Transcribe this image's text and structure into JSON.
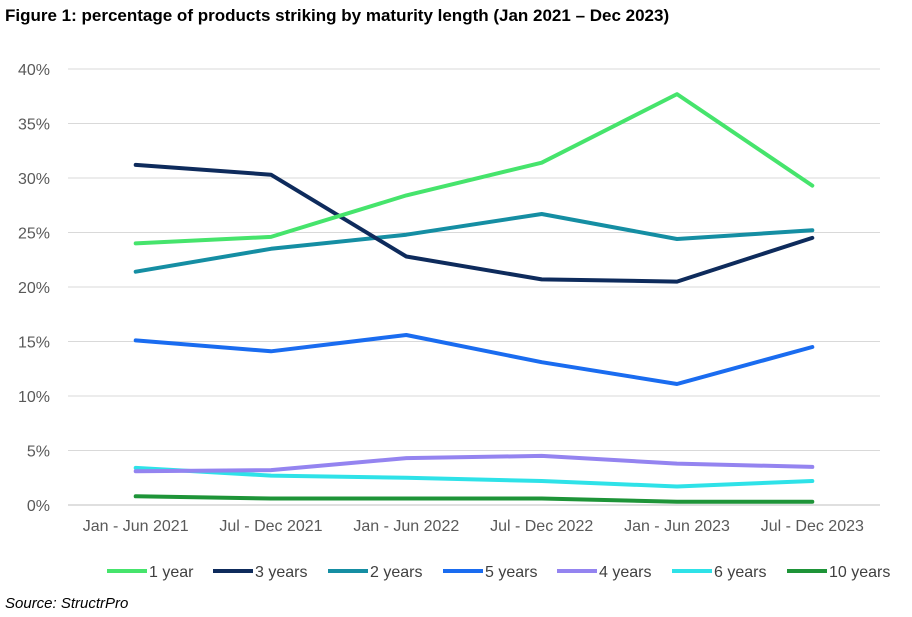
{
  "figure": {
    "title": "Figure 1: percentage of products striking by maturity length (Jan 2021 – Dec 2023)",
    "source": "Source: StructrPro"
  },
  "chart_data": {
    "type": "line",
    "title": "Figure 1: percentage of products striking by maturity length (Jan 2021 – Dec 2023)",
    "xlabel": "",
    "ylabel": "",
    "categories": [
      "Jan - Jun 2021",
      "Jul - Dec 2021",
      "Jan - Jun 2022",
      "Jul - Dec 2022",
      "Jan - Jun 2023",
      "Jul - Dec 2023"
    ],
    "ylim": [
      0,
      40
    ],
    "yticks": [
      0,
      5,
      10,
      15,
      20,
      25,
      30,
      35,
      40
    ],
    "ytick_labels": [
      "0%",
      "5%",
      "10%",
      "15%",
      "20%",
      "25%",
      "30%",
      "35%",
      "40%"
    ],
    "grid": true,
    "legend_position": "bottom",
    "series": [
      {
        "name": "1 year",
        "color": "#46e46c",
        "values": [
          24.0,
          24.6,
          28.4,
          31.4,
          37.7,
          29.3
        ]
      },
      {
        "name": "3 years",
        "color": "#0e2b5c",
        "values": [
          31.2,
          30.3,
          22.8,
          20.7,
          20.5,
          24.5
        ]
      },
      {
        "name": "2 years",
        "color": "#158ea3",
        "values": [
          21.4,
          23.5,
          24.8,
          26.7,
          24.4,
          25.2
        ]
      },
      {
        "name": "5 years",
        "color": "#1a6cf0",
        "values": [
          15.1,
          14.1,
          15.6,
          13.1,
          11.1,
          14.5
        ]
      },
      {
        "name": "4 years",
        "color": "#9484f0",
        "values": [
          3.1,
          3.2,
          4.3,
          4.5,
          3.8,
          3.5
        ]
      },
      {
        "name": "6 years",
        "color": "#2ee2e8",
        "values": [
          3.4,
          2.7,
          2.5,
          2.2,
          1.7,
          2.2
        ]
      },
      {
        "name": "10 years",
        "color": "#1e9438",
        "values": [
          0.8,
          0.6,
          0.6,
          0.6,
          0.3,
          0.3
        ]
      }
    ]
  }
}
